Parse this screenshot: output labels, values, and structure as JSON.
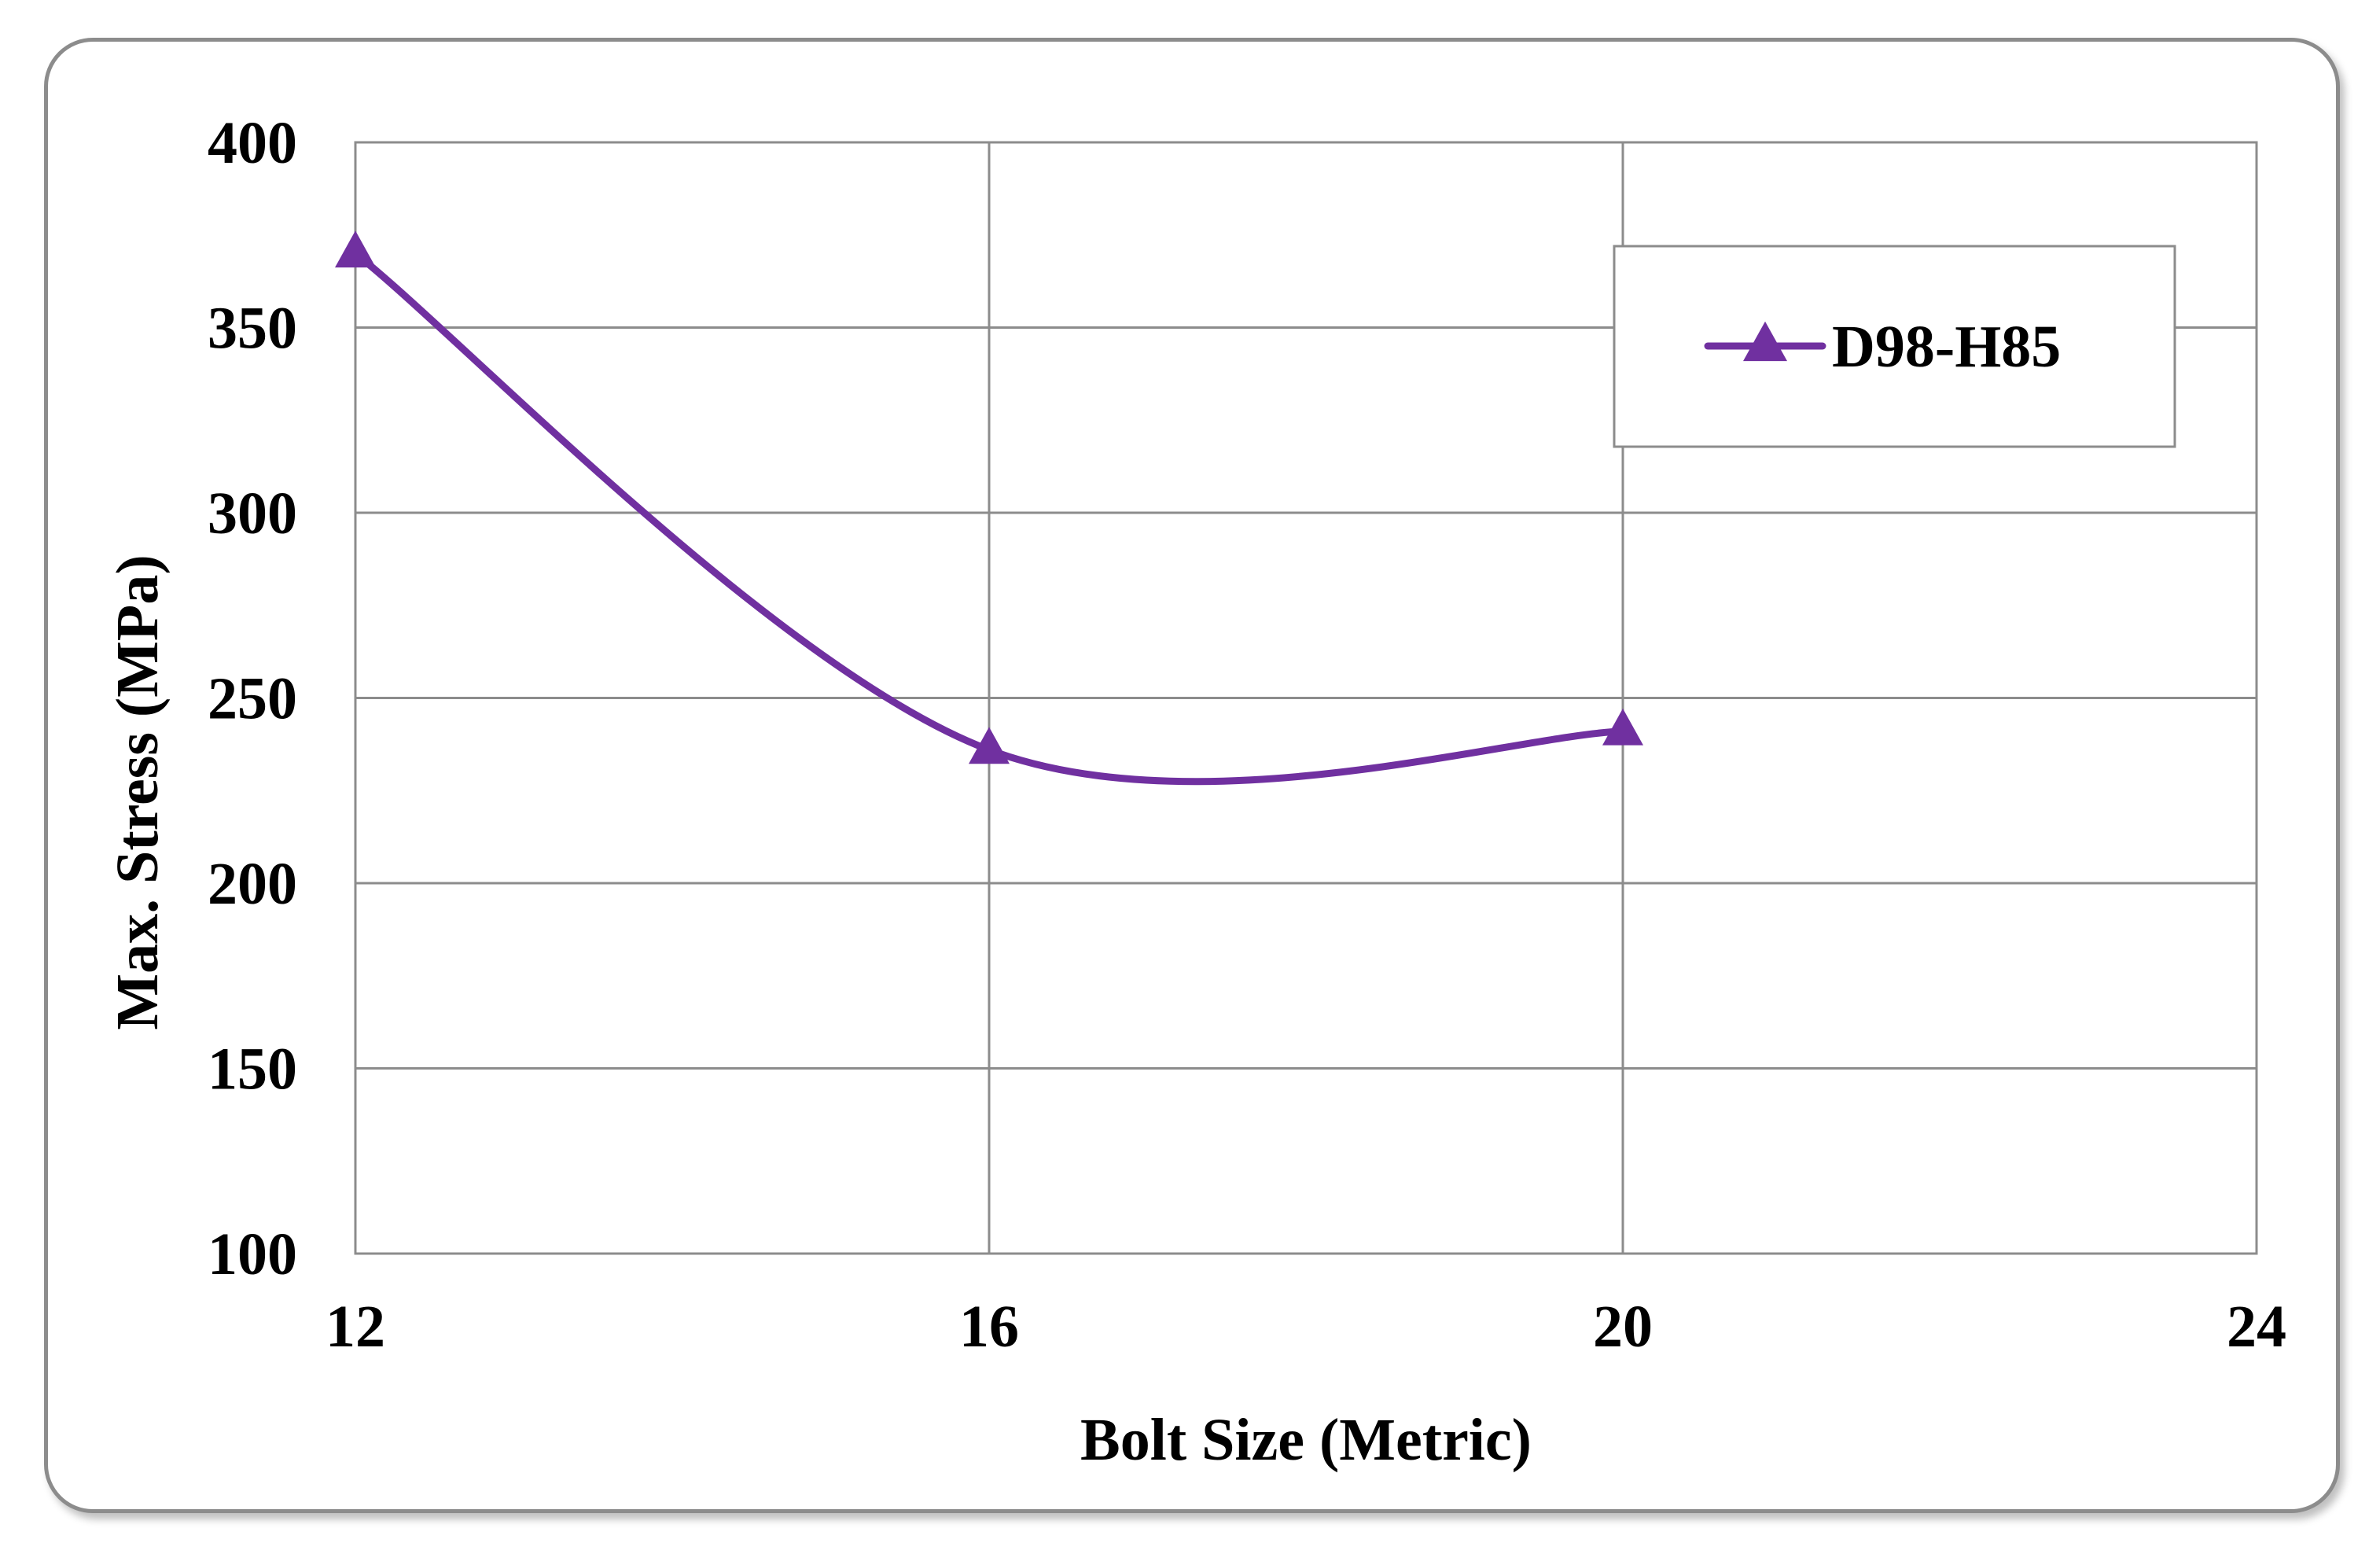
{
  "chart_data": {
    "type": "line",
    "title": "",
    "xlabel": "Bolt Size (Metric)",
    "ylabel": "Max. Stress (MPa)",
    "xlim": [
      12,
      24
    ],
    "ylim": [
      100,
      400
    ],
    "x_ticks": [
      12,
      16,
      20,
      24
    ],
    "y_ticks": [
      100,
      150,
      200,
      250,
      300,
      350,
      400
    ],
    "x_tick_labels": [
      "12",
      "16",
      "20",
      "24"
    ],
    "y_tick_labels": [
      "100",
      "150",
      "200",
      "250",
      "300",
      "350",
      "400"
    ],
    "grid": true,
    "smooth": true,
    "legend_position": "top-right",
    "series": [
      {
        "name": "D98-H85",
        "color": "#7030a0",
        "marker": "triangle",
        "x": [
          12,
          16,
          20
        ],
        "y": [
          370,
          236,
          241
        ]
      }
    ]
  }
}
